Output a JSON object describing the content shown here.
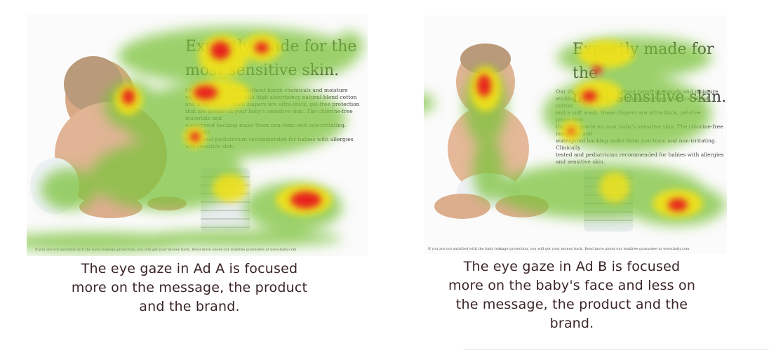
{
  "ad_a": {
    "headline": "Expertly made for the\nmost sensitive skin.",
    "body": "Our diapers are made without harsh chemicals and moisture\nwicking fibers. Made with high absorbency natural-blend cotton\nand a soft wash, these diapers are ultra-thick, gel-free protection\nthat are gentle on your baby's sensitive skin. The chlorine-free materials and\nwaterproof backing make them non-toxic and non-irritating. Clinically\ntested and pediatrician recommended for babies with allergies\nand sensitive skin.",
    "footer": "If you are not satisfied with the baby leakage protection, you will get your money back. Read more about our leakfree guarantee at www.baby.com",
    "caption": "The eye gaze in Ad A is focused\nmore on the message, the product\nand the brand."
  },
  "ad_b": {
    "headline": "Expertly made for the\nmost sensitive skin.",
    "body": "Our diapers are made without harsh chemicals and moisture\nwicking fibers. Made with high absorbency natural-blend cotton\nand a soft wash, these diapers are ultra-thick, gel-free protection\nthat are gentle on your baby's sensitive skin. The chlorine-free materials and\nwaterproof backing make them non-toxic and non-irritating. Clinically\ntested and pediatrician recommended for babies with allergies\nand sensitive skin.",
    "footer": "If you are not satisfied with the baby leakage protection, you will get your money back. Read more about our leakfree guarantee at www.baby.com",
    "caption": "The eye gaze in Ad B is focused\nmore on the baby's face and less on\nthe message, the product and the\nbrand."
  },
  "colors": {
    "caption_text": "#3b2526",
    "heat_hot": "#e8231a",
    "heat_warm": "#f3e21a",
    "heat_cool": "#7cc23a"
  }
}
